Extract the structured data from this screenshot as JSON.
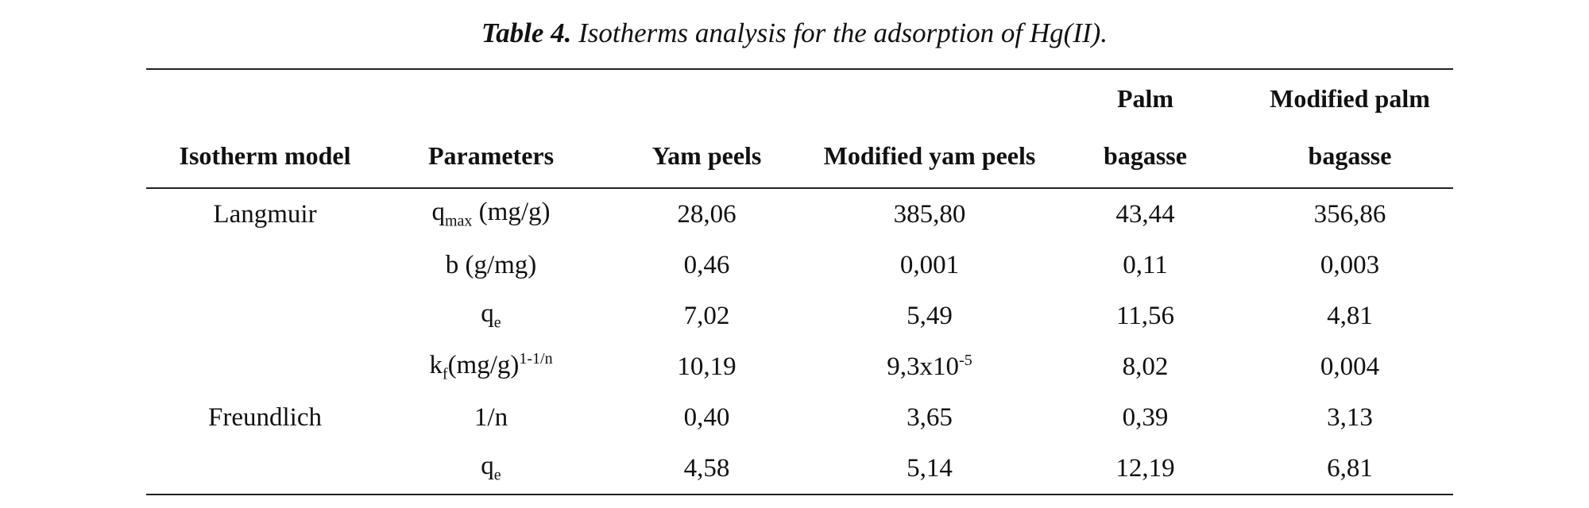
{
  "caption": {
    "label": "Table 4.",
    "text": "Isotherms analysis for the adsorption of Hg(II)."
  },
  "table": {
    "header": [
      "Isotherm model",
      "Parameters",
      "Yam peels",
      "Modified yam peels",
      "Palm bagasse",
      "Modified palm bagasse"
    ],
    "rows": [
      {
        "model": "Langmuir",
        "parameter": [
          {
            "text": "q"
          },
          {
            "text": "max",
            "script": "sub"
          },
          {
            "text": " (mg/g)"
          }
        ],
        "values": [
          "28,06",
          "385,80",
          "43,44",
          "356,86"
        ]
      },
      {
        "parameter": [
          {
            "text": "b (g/mg)"
          }
        ],
        "values": [
          "0,46",
          "0,001",
          "0,11",
          "0,003"
        ]
      },
      {
        "parameter": [
          {
            "text": "q"
          },
          {
            "text": "e",
            "script": "sub"
          }
        ],
        "values": [
          "7,02",
          "5,49",
          "11,56",
          "4,81"
        ]
      },
      {
        "parameter": [
          {
            "text": "k"
          },
          {
            "text": "f",
            "script": "sub"
          },
          {
            "text": "(mg/g)"
          },
          {
            "text": "1-1/n",
            "script": "sup"
          }
        ],
        "values": [
          "10,19",
          [
            {
              "text": "9,3x10"
            },
            {
              "text": "-5",
              "script": "sup"
            }
          ],
          "8,02",
          "0,004"
        ]
      },
      {
        "model": "Freundlich",
        "parameter": [
          {
            "text": "1/n"
          }
        ],
        "values": [
          "0,40",
          "3,65",
          "0,39",
          "3,13"
        ]
      },
      {
        "parameter": [
          {
            "text": "q"
          },
          {
            "text": "e",
            "script": "sub"
          }
        ],
        "values": [
          "4,58",
          "5,14",
          "12,19",
          "6,81"
        ]
      }
    ]
  }
}
